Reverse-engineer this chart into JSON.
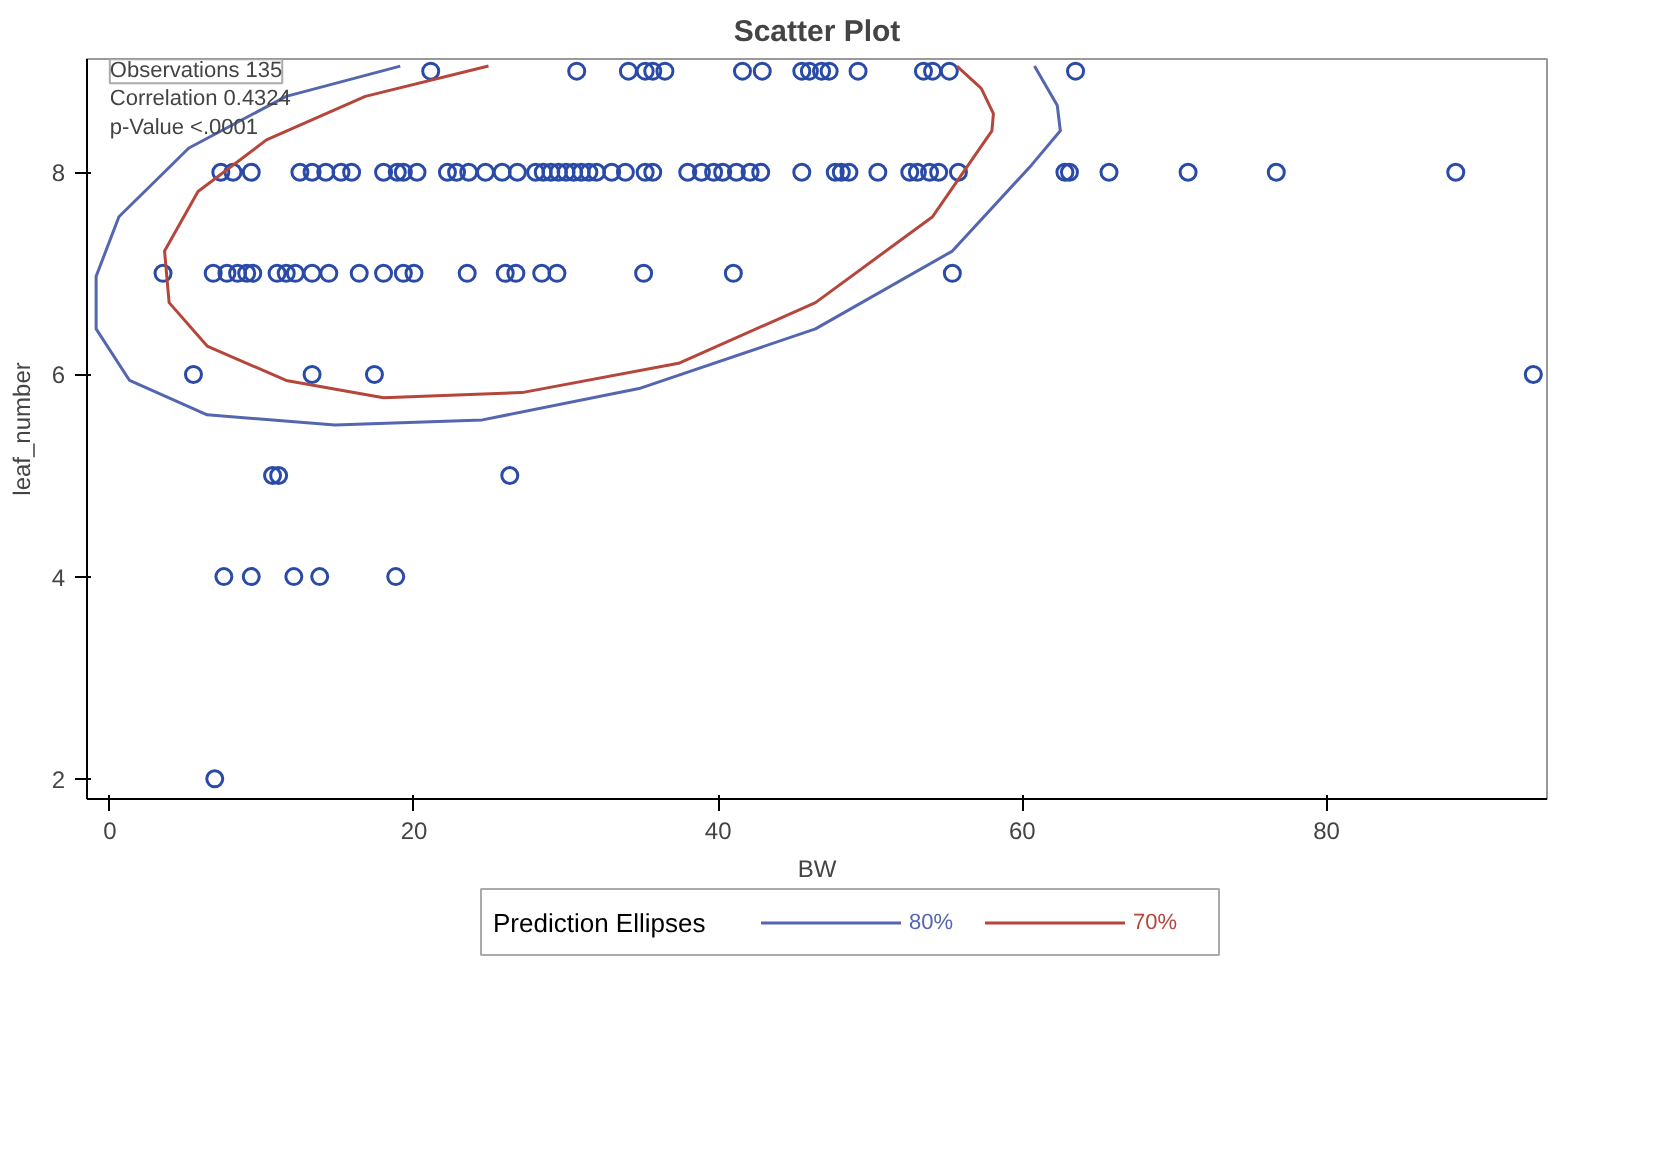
{
  "chart_data": {
    "type": "scatter",
    "title": "Scatter Plot",
    "xlabel": "BW",
    "ylabel": "leaf_number",
    "legend_title": "Prediction Ellipses",
    "legend": "bottom",
    "grid": false,
    "xlim": [
      -1.5,
      94.5
    ],
    "ylim": [
      1.8,
      9.12
    ],
    "xticks": [
      0,
      20,
      40,
      60,
      80
    ],
    "yticks": [
      2,
      4,
      6,
      8
    ],
    "annotations": [
      "Observations 135",
      "Correlation 0.4324",
      "p-Value <.0001"
    ],
    "series": [
      {
        "type": "scatter",
        "marker": "circle",
        "color": "#2a4aa8",
        "x": [
          21.1,
          30.7,
          34.1,
          35.2,
          35.7,
          36.5,
          41.6,
          42.9,
          45.5,
          46.0,
          46.8,
          47.3,
          49.2,
          53.5,
          54.1,
          55.2,
          63.5,
          7.3,
          8.1,
          9.3,
          12.5,
          13.3,
          14.2,
          15.2,
          15.9,
          18.0,
          18.9,
          19.3,
          20.2,
          22.2,
          22.8,
          23.6,
          24.7,
          25.8,
          26.8,
          28.0,
          28.5,
          29.0,
          29.5,
          30.0,
          30.5,
          31.0,
          31.5,
          32.0,
          33.0,
          33.9,
          35.2,
          35.7,
          38.0,
          38.9,
          39.7,
          40.3,
          41.2,
          42.1,
          42.8,
          45.5,
          47.7,
          48.1,
          48.6,
          50.5,
          52.6,
          53.1,
          53.9,
          54.5,
          55.8,
          62.8,
          63.1,
          65.7,
          70.9,
          76.7,
          88.5,
          3.5,
          6.8,
          7.7,
          8.4,
          9.0,
          9.4,
          11.0,
          11.6,
          12.2,
          13.3,
          14.4,
          16.4,
          18.0,
          19.3,
          20.0,
          23.5,
          26.0,
          26.7,
          28.4,
          29.4,
          35.1,
          41.0,
          55.4,
          5.5,
          13.3,
          17.4,
          93.6,
          10.7,
          11.1,
          26.3,
          7.5,
          9.3,
          12.1,
          13.8,
          18.8,
          6.9
        ],
        "values": [
          9,
          9,
          9,
          9,
          9,
          9,
          9,
          9,
          9,
          9,
          9,
          9,
          9,
          9,
          9,
          9,
          9,
          8,
          8,
          8,
          8,
          8,
          8,
          8,
          8,
          8,
          8,
          8,
          8,
          8,
          8,
          8,
          8,
          8,
          8,
          8,
          8,
          8,
          8,
          8,
          8,
          8,
          8,
          8,
          8,
          8,
          8,
          8,
          8,
          8,
          8,
          8,
          8,
          8,
          8,
          8,
          8,
          8,
          8,
          8,
          8,
          8,
          8,
          8,
          8,
          8,
          8,
          8,
          8,
          8,
          8,
          7,
          7,
          7,
          7,
          7,
          7,
          7,
          7,
          7,
          7,
          7,
          7,
          7,
          7,
          7,
          7,
          7,
          7,
          7,
          7,
          7,
          7,
          7,
          6,
          6,
          6,
          6,
          5,
          5,
          5,
          4,
          4,
          4,
          4,
          4,
          2
        ]
      },
      {
        "type": "line",
        "name": "80%",
        "color": "#5566b0",
        "marker": "none",
        "line_style": "solid",
        "x": [
          19.1,
          11.6,
          5.2,
          0.6,
          -0.9,
          -0.9,
          1.3,
          6.4,
          14.8,
          24.5,
          34.8,
          46.4,
          55.4,
          60.6,
          62.5,
          62.3,
          60.8
        ],
        "values": [
          9.05,
          8.75,
          8.24,
          7.56,
          6.97,
          6.45,
          5.94,
          5.6,
          5.5,
          5.55,
          5.86,
          6.45,
          7.22,
          8.07,
          8.41,
          8.66,
          9.05
        ]
      },
      {
        "type": "line",
        "name": "70%",
        "color": "#b5463c",
        "marker": "none",
        "line_style": "solid",
        "x": [
          24.9,
          16.8,
          10.3,
          5.8,
          3.6,
          3.9,
          6.4,
          11.6,
          18.0,
          27.1,
          37.4,
          46.4,
          54.1,
          58.0,
          58.1,
          57.3,
          55.7
        ],
        "values": [
          9.05,
          8.75,
          8.32,
          7.81,
          7.22,
          6.71,
          6.28,
          5.94,
          5.77,
          5.82,
          6.11,
          6.71,
          7.56,
          8.41,
          8.58,
          8.83,
          9.05
        ]
      }
    ]
  }
}
